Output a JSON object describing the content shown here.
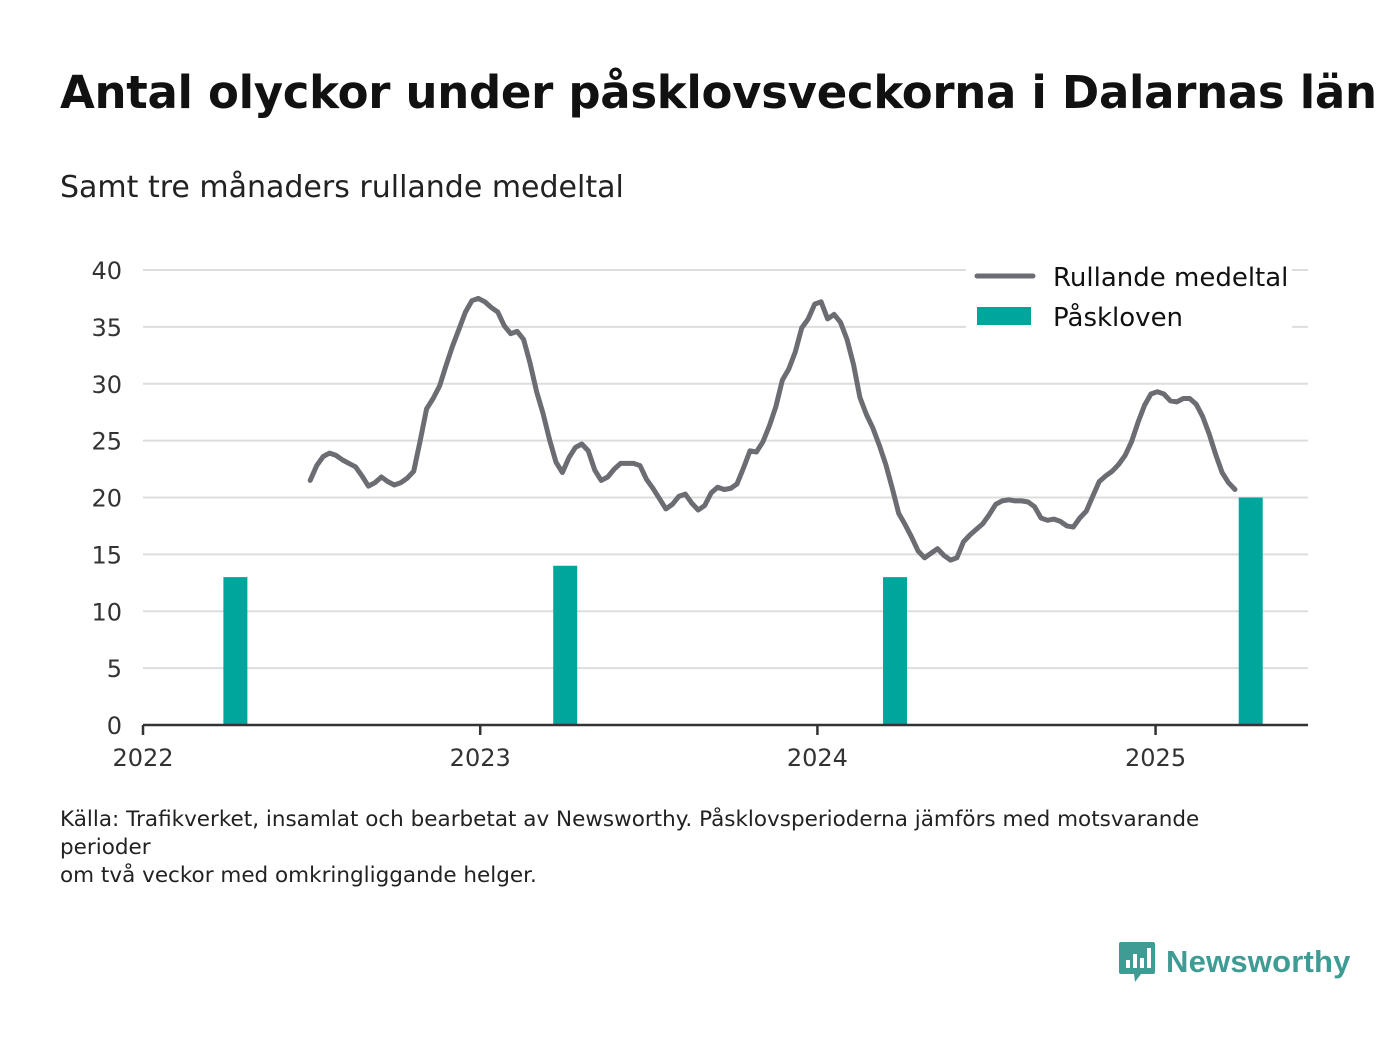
{
  "title": "Antal olyckor under påsklovsveckorna i Dalarnas län",
  "subtitle": "Samt tre månaders rullande medeltal",
  "source_lines": [
    "Källa: Trafikverket, insamlat och bearbetat av Newsworthy. Påsklovsperioderna jämförs med motsvarande perioder",
    "om två veckor med omkringliggande helger."
  ],
  "brand": {
    "name": "Newsworthy",
    "color": "#3f9c94"
  },
  "colors": {
    "line": "#6b6d72",
    "bars": "#00a69c",
    "grid": "#dddddd",
    "axis": "#333333"
  },
  "chart_data": {
    "type": "bar+line",
    "title": "Antal olyckor under påsklovsveckorna i Dalarnas län",
    "subtitle": "Samt tre månaders rullande medeltal",
    "xlim": [
      "2022-01-01",
      "2025-06-15"
    ],
    "ylim": [
      0,
      40
    ],
    "y_ticks": [
      "0",
      "5",
      "10",
      "15",
      "20",
      "25",
      "30",
      "35",
      "40"
    ],
    "x_ticks": [
      {
        "date": "2022-01-01",
        "label": "2022"
      },
      {
        "date": "2023-01-01",
        "label": "2023"
      },
      {
        "date": "2024-01-01",
        "label": "2024"
      },
      {
        "date": "2025-01-01",
        "label": "2025"
      }
    ],
    "grid": "horizontal",
    "legend_position": "top-right",
    "series": [
      {
        "name": "Påskloven",
        "type": "bar",
        "points": [
          {
            "x": "2022-04-11",
            "y": 13
          },
          {
            "x": "2023-04-03",
            "y": 14
          },
          {
            "x": "2024-03-25",
            "y": 13
          },
          {
            "x": "2025-04-14",
            "y": 20
          }
        ]
      },
      {
        "name": "Rullande medeltal",
        "type": "line",
        "points": [
          {
            "x": "2022-07-01",
            "y": 21.5
          },
          {
            "x": "2022-07-08",
            "y": 22.8
          },
          {
            "x": "2022-07-15",
            "y": 23.6
          },
          {
            "x": "2022-07-22",
            "y": 23.9
          },
          {
            "x": "2022-07-29",
            "y": 23.7
          },
          {
            "x": "2022-08-05",
            "y": 23.3
          },
          {
            "x": "2022-08-12",
            "y": 23.0
          },
          {
            "x": "2022-08-19",
            "y": 22.7
          },
          {
            "x": "2022-08-26",
            "y": 21.9
          },
          {
            "x": "2022-09-02",
            "y": 21.0
          },
          {
            "x": "2022-09-09",
            "y": 21.3
          },
          {
            "x": "2022-09-16",
            "y": 21.8
          },
          {
            "x": "2022-09-23",
            "y": 21.4
          },
          {
            "x": "2022-09-30",
            "y": 21.1
          },
          {
            "x": "2022-10-07",
            "y": 21.3
          },
          {
            "x": "2022-10-14",
            "y": 21.7
          },
          {
            "x": "2022-10-21",
            "y": 22.3
          },
          {
            "x": "2022-10-28",
            "y": 25.0
          },
          {
            "x": "2022-11-04",
            "y": 27.8
          },
          {
            "x": "2022-11-11",
            "y": 28.7
          },
          {
            "x": "2022-11-18",
            "y": 29.8
          },
          {
            "x": "2022-11-25",
            "y": 31.6
          },
          {
            "x": "2022-12-02",
            "y": 33.3
          },
          {
            "x": "2022-12-09",
            "y": 34.8
          },
          {
            "x": "2022-12-16",
            "y": 36.3
          },
          {
            "x": "2022-12-23",
            "y": 37.3
          },
          {
            "x": "2022-12-30",
            "y": 37.5
          },
          {
            "x": "2023-01-06",
            "y": 37.2
          },
          {
            "x": "2023-01-13",
            "y": 36.7
          },
          {
            "x": "2023-01-20",
            "y": 36.3
          },
          {
            "x": "2023-01-27",
            "y": 35.1
          },
          {
            "x": "2023-02-03",
            "y": 34.4
          },
          {
            "x": "2023-02-10",
            "y": 34.6
          },
          {
            "x": "2023-02-17",
            "y": 33.9
          },
          {
            "x": "2023-02-24",
            "y": 31.8
          },
          {
            "x": "2023-03-03",
            "y": 29.3
          },
          {
            "x": "2023-03-10",
            "y": 27.4
          },
          {
            "x": "2023-03-17",
            "y": 25.1
          },
          {
            "x": "2023-03-24",
            "y": 23.1
          },
          {
            "x": "2023-03-31",
            "y": 22.2
          },
          {
            "x": "2023-04-07",
            "y": 23.5
          },
          {
            "x": "2023-04-14",
            "y": 24.4
          },
          {
            "x": "2023-04-21",
            "y": 24.7
          },
          {
            "x": "2023-04-28",
            "y": 24.1
          },
          {
            "x": "2023-05-05",
            "y": 22.4
          },
          {
            "x": "2023-05-12",
            "y": 21.5
          },
          {
            "x": "2023-05-19",
            "y": 21.8
          },
          {
            "x": "2023-05-26",
            "y": 22.5
          },
          {
            "x": "2023-06-02",
            "y": 23.0
          },
          {
            "x": "2023-06-09",
            "y": 23.0
          },
          {
            "x": "2023-06-16",
            "y": 23.0
          },
          {
            "x": "2023-06-23",
            "y": 22.8
          },
          {
            "x": "2023-06-30",
            "y": 21.6
          },
          {
            "x": "2023-07-07",
            "y": 20.8
          },
          {
            "x": "2023-07-14",
            "y": 19.9
          },
          {
            "x": "2023-07-21",
            "y": 19.0
          },
          {
            "x": "2023-07-28",
            "y": 19.4
          },
          {
            "x": "2023-08-04",
            "y": 20.1
          },
          {
            "x": "2023-08-11",
            "y": 20.3
          },
          {
            "x": "2023-08-18",
            "y": 19.5
          },
          {
            "x": "2023-08-25",
            "y": 18.9
          },
          {
            "x": "2023-09-01",
            "y": 19.3
          },
          {
            "x": "2023-09-08",
            "y": 20.4
          },
          {
            "x": "2023-09-15",
            "y": 20.9
          },
          {
            "x": "2023-09-22",
            "y": 20.7
          },
          {
            "x": "2023-09-29",
            "y": 20.8
          },
          {
            "x": "2023-10-06",
            "y": 21.2
          },
          {
            "x": "2023-10-13",
            "y": 22.6
          },
          {
            "x": "2023-10-20",
            "y": 24.1
          },
          {
            "x": "2023-10-27",
            "y": 24.0
          },
          {
            "x": "2023-11-03",
            "y": 24.9
          },
          {
            "x": "2023-11-10",
            "y": 26.3
          },
          {
            "x": "2023-11-17",
            "y": 28.0
          },
          {
            "x": "2023-11-24",
            "y": 30.3
          },
          {
            "x": "2023-12-01",
            "y": 31.3
          },
          {
            "x": "2023-12-08",
            "y": 32.8
          },
          {
            "x": "2023-12-15",
            "y": 34.9
          },
          {
            "x": "2023-12-22",
            "y": 35.7
          },
          {
            "x": "2023-12-29",
            "y": 37.0
          },
          {
            "x": "2024-01-05",
            "y": 37.2
          },
          {
            "x": "2024-01-12",
            "y": 35.7
          },
          {
            "x": "2024-01-19",
            "y": 36.1
          },
          {
            "x": "2024-01-26",
            "y": 35.4
          },
          {
            "x": "2024-02-02",
            "y": 33.9
          },
          {
            "x": "2024-02-09",
            "y": 31.7
          },
          {
            "x": "2024-02-16",
            "y": 28.8
          },
          {
            "x": "2024-02-23",
            "y": 27.3
          },
          {
            "x": "2024-03-01",
            "y": 26.1
          },
          {
            "x": "2024-03-08",
            "y": 24.6
          },
          {
            "x": "2024-03-15",
            "y": 22.9
          },
          {
            "x": "2024-03-22",
            "y": 20.8
          },
          {
            "x": "2024-03-29",
            "y": 18.6
          },
          {
            "x": "2024-04-05",
            "y": 17.6
          },
          {
            "x": "2024-04-12",
            "y": 16.5
          },
          {
            "x": "2024-04-19",
            "y": 15.3
          },
          {
            "x": "2024-04-26",
            "y": 14.7
          },
          {
            "x": "2024-05-03",
            "y": 15.1
          },
          {
            "x": "2024-05-10",
            "y": 15.5
          },
          {
            "x": "2024-05-17",
            "y": 14.9
          },
          {
            "x": "2024-05-24",
            "y": 14.5
          },
          {
            "x": "2024-05-31",
            "y": 14.7
          },
          {
            "x": "2024-06-07",
            "y": 16.1
          },
          {
            "x": "2024-06-14",
            "y": 16.7
          },
          {
            "x": "2024-06-21",
            "y": 17.2
          },
          {
            "x": "2024-06-28",
            "y": 17.7
          },
          {
            "x": "2024-07-05",
            "y": 18.5
          },
          {
            "x": "2024-07-12",
            "y": 19.4
          },
          {
            "x": "2024-07-19",
            "y": 19.7
          },
          {
            "x": "2024-07-26",
            "y": 19.8
          },
          {
            "x": "2024-08-02",
            "y": 19.7
          },
          {
            "x": "2024-08-09",
            "y": 19.7
          },
          {
            "x": "2024-08-16",
            "y": 19.6
          },
          {
            "x": "2024-08-23",
            "y": 19.2
          },
          {
            "x": "2024-08-30",
            "y": 18.2
          },
          {
            "x": "2024-09-06",
            "y": 18.0
          },
          {
            "x": "2024-09-13",
            "y": 18.1
          },
          {
            "x": "2024-09-20",
            "y": 17.9
          },
          {
            "x": "2024-09-27",
            "y": 17.5
          },
          {
            "x": "2024-10-04",
            "y": 17.4
          },
          {
            "x": "2024-10-11",
            "y": 18.2
          },
          {
            "x": "2024-10-18",
            "y": 18.8
          },
          {
            "x": "2024-10-25",
            "y": 20.1
          },
          {
            "x": "2024-11-01",
            "y": 21.4
          },
          {
            "x": "2024-11-08",
            "y": 21.9
          },
          {
            "x": "2024-11-15",
            "y": 22.3
          },
          {
            "x": "2024-11-22",
            "y": 22.9
          },
          {
            "x": "2024-11-29",
            "y": 23.7
          },
          {
            "x": "2024-12-06",
            "y": 24.9
          },
          {
            "x": "2024-12-13",
            "y": 26.6
          },
          {
            "x": "2024-12-20",
            "y": 28.1
          },
          {
            "x": "2024-12-27",
            "y": 29.1
          },
          {
            "x": "2025-01-03",
            "y": 29.3
          },
          {
            "x": "2025-01-10",
            "y": 29.1
          },
          {
            "x": "2025-01-17",
            "y": 28.5
          },
          {
            "x": "2025-01-24",
            "y": 28.4
          },
          {
            "x": "2025-01-31",
            "y": 28.7
          },
          {
            "x": "2025-02-07",
            "y": 28.7
          },
          {
            "x": "2025-02-14",
            "y": 28.2
          },
          {
            "x": "2025-02-21",
            "y": 27.1
          },
          {
            "x": "2025-02-28",
            "y": 25.6
          },
          {
            "x": "2025-03-07",
            "y": 23.8
          },
          {
            "x": "2025-03-14",
            "y": 22.2
          },
          {
            "x": "2025-03-21",
            "y": 21.3
          },
          {
            "x": "2025-03-28",
            "y": 20.7
          }
        ]
      }
    ]
  }
}
